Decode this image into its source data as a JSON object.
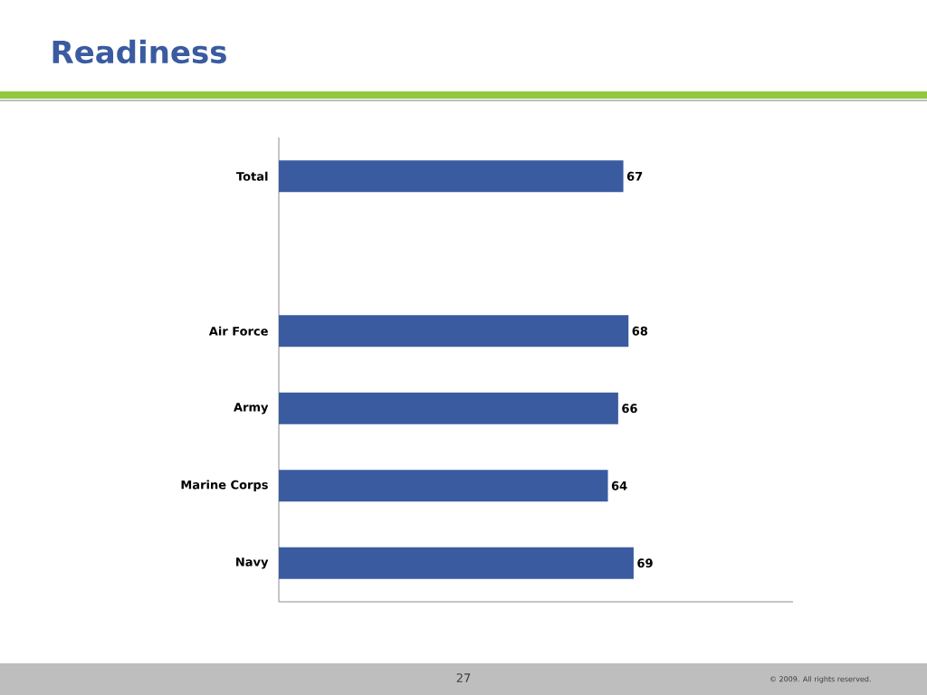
{
  "chart_data": {
    "type": "bar",
    "orientation": "horizontal",
    "title": "Readiness",
    "categories": [
      "Total",
      null,
      "Air Force",
      "Army",
      "Marine Corps",
      "Navy"
    ],
    "values": [
      67,
      null,
      68,
      66,
      64,
      69
    ],
    "color": "#3a5ba0",
    "xlim": [
      0,
      100
    ],
    "data_labels": true,
    "annotations": [
      "27",
      "© 2009. All rights reserved."
    ]
  }
}
